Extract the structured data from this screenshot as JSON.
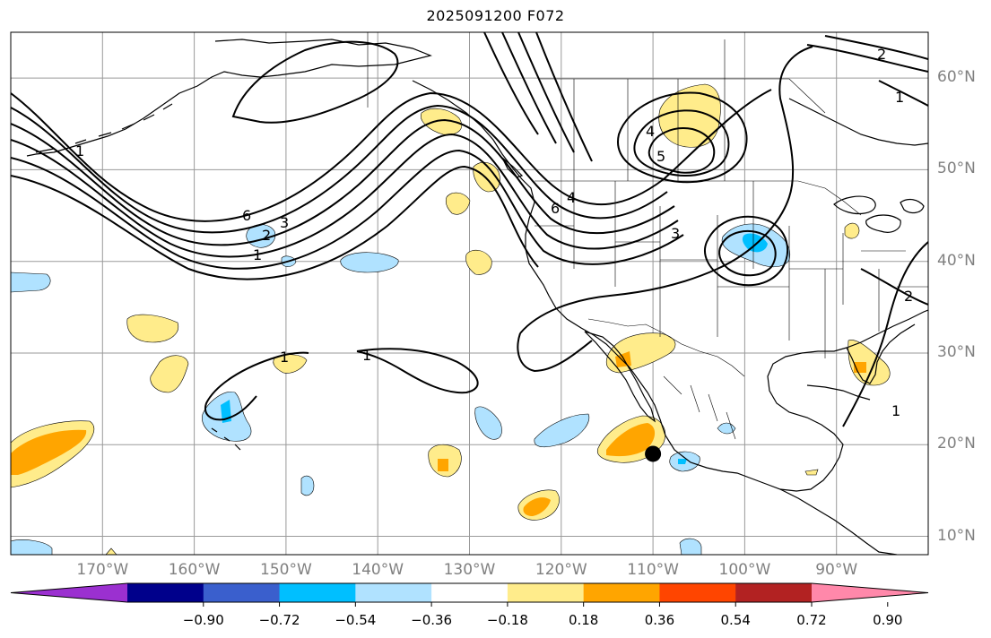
{
  "title": "2025091200 F072",
  "map": {
    "projection": "lat-lon",
    "extent": {
      "lon_min": -180,
      "lon_max": -80,
      "lat_min": 8,
      "lat_max": 65
    },
    "longitude_ticks": [
      {
        "value": -170,
        "label": "170°W"
      },
      {
        "value": -160,
        "label": "160°W"
      },
      {
        "value": -150,
        "label": "150°W"
      },
      {
        "value": -140,
        "label": "140°W"
      },
      {
        "value": -130,
        "label": "130°W"
      },
      {
        "value": -120,
        "label": "120°W"
      },
      {
        "value": -110,
        "label": "110°W"
      },
      {
        "value": -100,
        "label": "100°W"
      },
      {
        "value": -90,
        "label": "90°W"
      }
    ],
    "latitude_ticks": [
      {
        "value": 60,
        "label": "60°N"
      },
      {
        "value": 50,
        "label": "50°N"
      },
      {
        "value": 40,
        "label": "40°N"
      },
      {
        "value": 30,
        "label": "30°N"
      },
      {
        "value": 20,
        "label": "20°N"
      },
      {
        "value": 10,
        "label": "10°N"
      }
    ],
    "marker": {
      "name": "storm-position",
      "lon": -110,
      "lat": 19
    }
  },
  "colorbar": {
    "colors": [
      "#9b30d0",
      "#00008b",
      "#3a5fcd",
      "#00bfff",
      "#b0e2ff",
      "#ffffff",
      "#ffec8b",
      "#ffa500",
      "#ff4500",
      "#b22222",
      "#ff88aa"
    ],
    "labels": [
      "−0.90",
      "−0.72",
      "−0.54",
      "−0.36",
      "−0.18",
      "0.18",
      "0.36",
      "0.54",
      "0.72",
      "0.90"
    ]
  },
  "contour_labels": [
    "1",
    "2",
    "3",
    "4",
    "5",
    "6"
  ]
}
